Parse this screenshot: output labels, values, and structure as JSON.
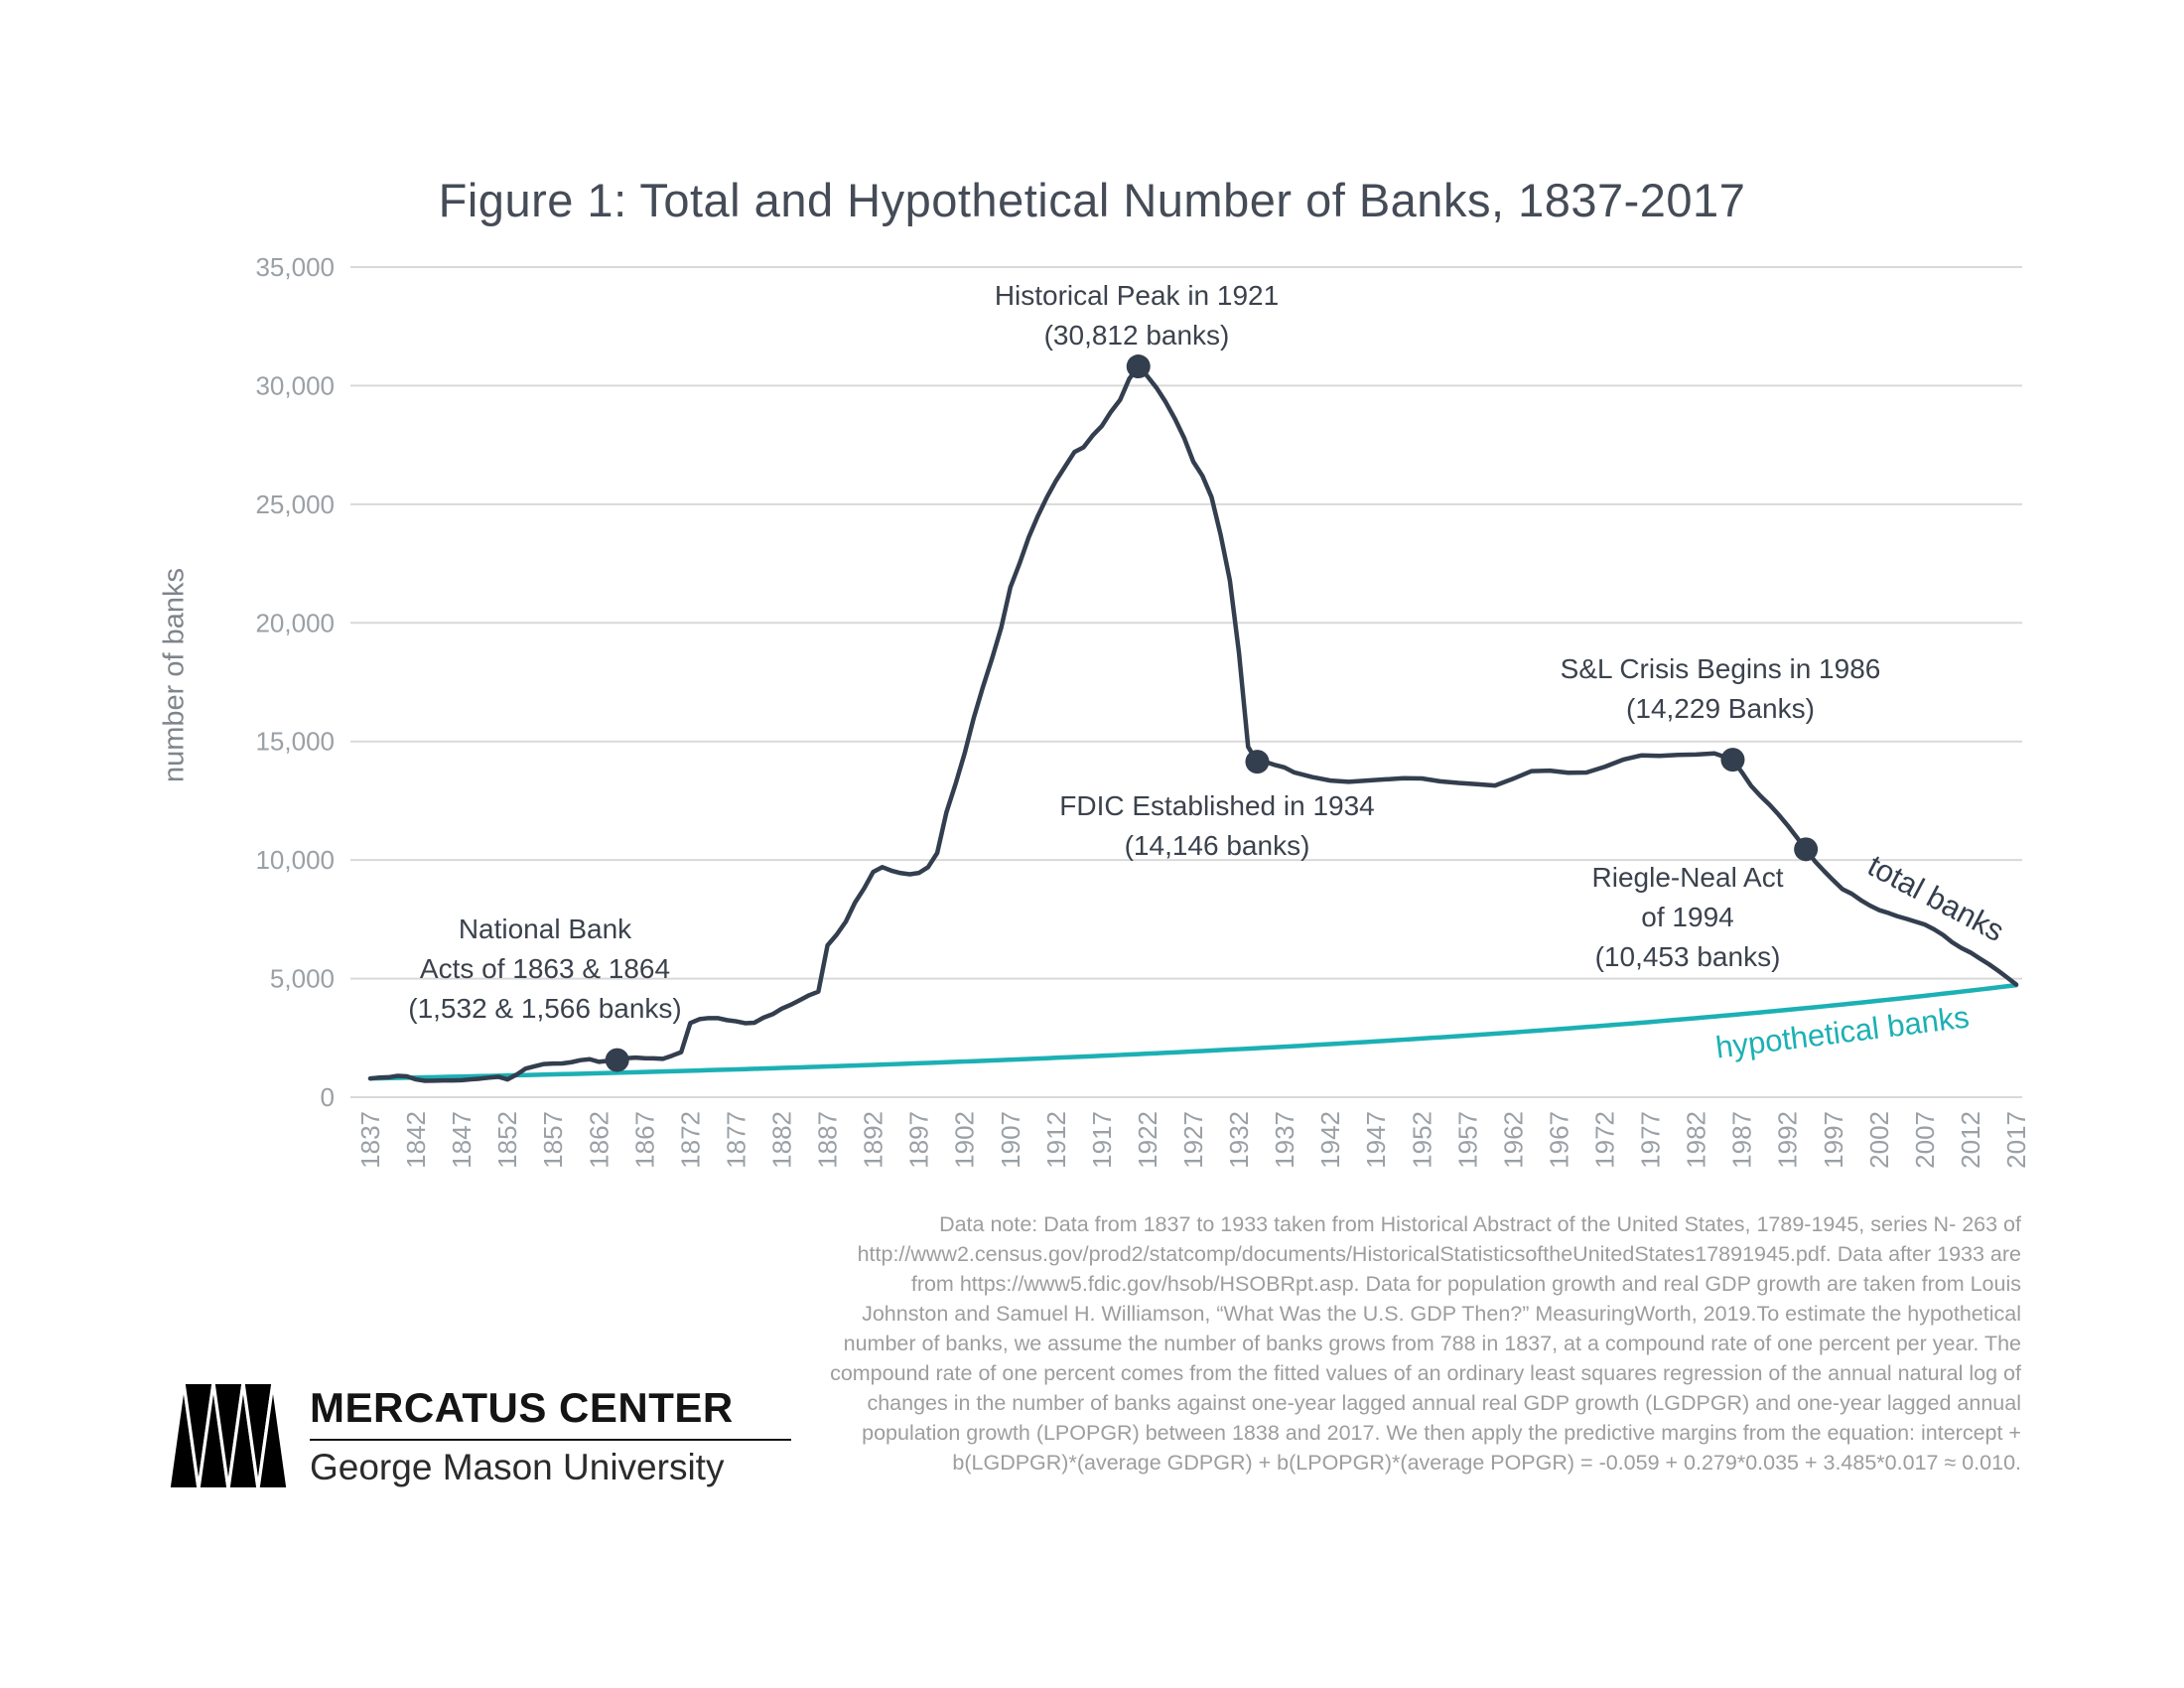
{
  "chart_data": {
    "type": "line",
    "title": "Figure 1: Total and Hypothetical Number of Banks, 1837-2017",
    "xlabel": "",
    "ylabel": "number of banks",
    "xlim": [
      1837,
      2017
    ],
    "ylim": [
      0,
      35000
    ],
    "grid": "horizontal",
    "legend_position": "labels-on-lines",
    "x_ticks": [
      1837,
      1842,
      1847,
      1852,
      1857,
      1862,
      1867,
      1872,
      1877,
      1882,
      1887,
      1892,
      1897,
      1902,
      1907,
      1912,
      1917,
      1922,
      1927,
      1932,
      1937,
      1942,
      1947,
      1952,
      1957,
      1962,
      1967,
      1972,
      1977,
      1982,
      1987,
      1992,
      1997,
      2002,
      2007,
      2012,
      2017
    ],
    "y_ticks": [
      0,
      5000,
      10000,
      15000,
      20000,
      25000,
      30000,
      35000
    ],
    "series": [
      {
        "name": "total banks",
        "color": "#333e4e",
        "points": [
          [
            1837,
            788
          ],
          [
            1838,
            829
          ],
          [
            1839,
            840
          ],
          [
            1840,
            901
          ],
          [
            1841,
            880
          ],
          [
            1842,
            750
          ],
          [
            1843,
            691
          ],
          [
            1844,
            696
          ],
          [
            1845,
            707
          ],
          [
            1846,
            707
          ],
          [
            1847,
            715
          ],
          [
            1848,
            751
          ],
          [
            1849,
            782
          ],
          [
            1850,
            824
          ],
          [
            1851,
            860
          ],
          [
            1852,
            750
          ],
          [
            1853,
            950
          ],
          [
            1854,
            1208
          ],
          [
            1855,
            1307
          ],
          [
            1856,
            1398
          ],
          [
            1857,
            1416
          ],
          [
            1858,
            1422
          ],
          [
            1859,
            1476
          ],
          [
            1860,
            1562
          ],
          [
            1861,
            1601
          ],
          [
            1862,
            1492
          ],
          [
            1863,
            1532
          ],
          [
            1864,
            1566
          ],
          [
            1865,
            1643
          ],
          [
            1866,
            1670
          ],
          [
            1867,
            1642
          ],
          [
            1868,
            1640
          ],
          [
            1869,
            1619
          ],
          [
            1870,
            1750
          ],
          [
            1871,
            1900
          ],
          [
            1872,
            3125
          ],
          [
            1873,
            3290
          ],
          [
            1874,
            3336
          ],
          [
            1875,
            3336
          ],
          [
            1876,
            3250
          ],
          [
            1877,
            3200
          ],
          [
            1878,
            3120
          ],
          [
            1879,
            3140
          ],
          [
            1880,
            3355
          ],
          [
            1881,
            3500
          ],
          [
            1882,
            3732
          ],
          [
            1883,
            3900
          ],
          [
            1884,
            4100
          ],
          [
            1885,
            4300
          ],
          [
            1886,
            4450
          ],
          [
            1887,
            6400
          ],
          [
            1888,
            6850
          ],
          [
            1889,
            7400
          ],
          [
            1890,
            8201
          ],
          [
            1891,
            8800
          ],
          [
            1892,
            9500
          ],
          [
            1893,
            9700
          ],
          [
            1894,
            9550
          ],
          [
            1895,
            9450
          ],
          [
            1896,
            9400
          ],
          [
            1897,
            9457
          ],
          [
            1898,
            9700
          ],
          [
            1899,
            10300
          ],
          [
            1900,
            12000
          ],
          [
            1901,
            13200
          ],
          [
            1902,
            14500
          ],
          [
            1903,
            16000
          ],
          [
            1904,
            17300
          ],
          [
            1905,
            18500
          ],
          [
            1906,
            19800
          ],
          [
            1907,
            21500
          ],
          [
            1908,
            22500
          ],
          [
            1909,
            23600
          ],
          [
            1910,
            24500
          ],
          [
            1911,
            25300
          ],
          [
            1912,
            26000
          ],
          [
            1913,
            26600
          ],
          [
            1914,
            27200
          ],
          [
            1915,
            27400
          ],
          [
            1916,
            27900
          ],
          [
            1917,
            28300
          ],
          [
            1918,
            28900
          ],
          [
            1919,
            29400
          ],
          [
            1920,
            30291
          ],
          [
            1921,
            30812
          ],
          [
            1922,
            30389
          ],
          [
            1923,
            29900
          ],
          [
            1924,
            29300
          ],
          [
            1925,
            28600
          ],
          [
            1926,
            27800
          ],
          [
            1927,
            26800
          ],
          [
            1928,
            26200
          ],
          [
            1929,
            25300
          ],
          [
            1930,
            23700
          ],
          [
            1931,
            21800
          ],
          [
            1932,
            18734
          ],
          [
            1933,
            14771
          ],
          [
            1934,
            14146
          ],
          [
            1935,
            14125
          ],
          [
            1936,
            14000
          ],
          [
            1937,
            13900
          ],
          [
            1938,
            13700
          ],
          [
            1940,
            13500
          ],
          [
            1942,
            13350
          ],
          [
            1944,
            13300
          ],
          [
            1946,
            13350
          ],
          [
            1948,
            13400
          ],
          [
            1950,
            13450
          ],
          [
            1952,
            13440
          ],
          [
            1954,
            13320
          ],
          [
            1956,
            13250
          ],
          [
            1958,
            13200
          ],
          [
            1960,
            13140
          ],
          [
            1962,
            13430
          ],
          [
            1964,
            13750
          ],
          [
            1966,
            13770
          ],
          [
            1968,
            13680
          ],
          [
            1970,
            13690
          ],
          [
            1972,
            13930
          ],
          [
            1974,
            14230
          ],
          [
            1976,
            14410
          ],
          [
            1978,
            14390
          ],
          [
            1980,
            14435
          ],
          [
            1982,
            14450
          ],
          [
            1984,
            14496
          ],
          [
            1986,
            14229
          ],
          [
            1987,
            13700
          ],
          [
            1988,
            13130
          ],
          [
            1989,
            12710
          ],
          [
            1990,
            12340
          ],
          [
            1991,
            11920
          ],
          [
            1992,
            11460
          ],
          [
            1993,
            10960
          ],
          [
            1994,
            10453
          ],
          [
            1995,
            9940
          ],
          [
            1996,
            9530
          ],
          [
            1997,
            9140
          ],
          [
            1998,
            8770
          ],
          [
            1999,
            8580
          ],
          [
            2000,
            8310
          ],
          [
            2001,
            8080
          ],
          [
            2002,
            7890
          ],
          [
            2003,
            7770
          ],
          [
            2004,
            7630
          ],
          [
            2005,
            7520
          ],
          [
            2006,
            7400
          ],
          [
            2007,
            7280
          ],
          [
            2008,
            7080
          ],
          [
            2009,
            6840
          ],
          [
            2010,
            6530
          ],
          [
            2011,
            6290
          ],
          [
            2012,
            6100
          ],
          [
            2013,
            5850
          ],
          [
            2014,
            5610
          ],
          [
            2015,
            5340
          ],
          [
            2016,
            5050
          ],
          [
            2017,
            4750
          ]
        ]
      },
      {
        "name": "hypothetical banks",
        "color": "#1cb0b4",
        "model": {
          "start_year": 1837,
          "end_year": 2017,
          "initial_banks": 788,
          "annual_growth_rate": 0.01
        }
      }
    ],
    "markers": [
      {
        "label": "National Bank Acts",
        "year": 1864,
        "value": 1566
      },
      {
        "label": "Historical Peak",
        "year": 1921,
        "value": 30812
      },
      {
        "label": "FDIC Established",
        "year": 1934,
        "value": 14146
      },
      {
        "label": "S&L Crisis Begins",
        "year": 1986,
        "value": 14229
      },
      {
        "label": "Riegle-Neal Act",
        "year": 1994,
        "value": 10453
      }
    ]
  },
  "annotations": [
    {
      "lines": [
        "National Bank",
        "Acts of 1863 & 1864",
        "(1,532 & 1,566 banks)"
      ]
    },
    {
      "lines": [
        "Historical Peak in 1921",
        "(30,812 banks)"
      ]
    },
    {
      "lines": [
        "FDIC Established in 1934",
        "(14,146 banks)"
      ]
    },
    {
      "lines": [
        "S&L Crisis Begins in 1986",
        "(14,229 Banks)"
      ]
    },
    {
      "lines": [
        "Riegle-Neal Act",
        "of 1994",
        "(10,453 banks)"
      ]
    }
  ],
  "colors": {
    "total_line": "#333e4e",
    "hypothetical_line": "#1cb0b4",
    "grid": "#d9d9d9",
    "tick_text": "#9aa0a5"
  },
  "data_note": "Data note: Data from 1837 to 1933 taken from Historical Abstract of the United States, 1789-1945, series N- 263 of http://www2.census.gov/prod2/statcomp/documents/HistoricalStatisticsoftheUnitedStates17891945.pdf. Data after 1933 are from https://www5.fdic.gov/hsob/HSOBRpt.asp. Data for population growth and real GDP growth are taken from Louis Johnston and Samuel H. Williamson, “What Was the U.S. GDP Then?” MeasuringWorth, 2019.To estimate the hypothetical number of banks, we assume the number of banks grows from 788 in 1837, at a compound rate of one percent per year. The compound rate of one percent comes from the fitted values of an ordinary least squares regression of the annual natural log of changes in the number of banks against one-year lagged annual real GDP growth (LGDPGR) and one-year lagged annual population growth (LPOPGR) between 1838 and 2017. We then apply the predictive margins from the equation: intercept + b(LGDPGR)*(average GDPGR) + b(LPOPGR)*(average POPGR) = -0.059 + 0.279*0.035 + 3.485*0.017 ≈ 0.010.",
  "logo": {
    "name": "MERCATUS CENTER",
    "university": "George Mason University"
  }
}
